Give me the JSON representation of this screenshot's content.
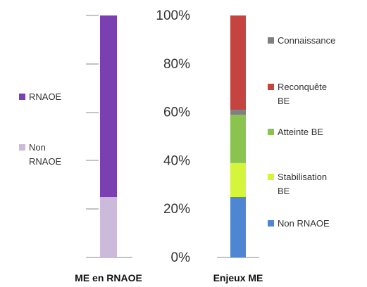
{
  "chart_data": [
    {
      "type": "bar",
      "stacked": true,
      "percent": true,
      "category": "ME en RNAOE",
      "series": [
        {
          "name": "Non RNAOE",
          "value": 25,
          "color": "#cbbad9"
        },
        {
          "name": "RNAOE",
          "value": 75,
          "color": "#7a3fb0"
        }
      ],
      "legend": "left",
      "grid": false
    },
    {
      "type": "bar",
      "stacked": true,
      "percent": true,
      "category": "Enjeux ME",
      "series": [
        {
          "name": "Non RNAOE",
          "value": 25,
          "color": "#4f86d4"
        },
        {
          "name": "Stabilisation BE",
          "value": 14,
          "color": "#d4f53a"
        },
        {
          "name": "Atteinte BE",
          "value": 20,
          "color": "#8bc34f"
        },
        {
          "name": "Connaissance",
          "value": 2,
          "color": "#7f7f7f"
        },
        {
          "name": "Reconquête BE",
          "value": 39,
          "color": "#c64440"
        }
      ],
      "legend": "right",
      "grid": false
    }
  ],
  "axis": {
    "ylim": [
      0,
      100
    ],
    "ticks": [
      {
        "value": 0,
        "label": "0%"
      },
      {
        "value": 20,
        "label": "20%"
      },
      {
        "value": 40,
        "label": "40%"
      },
      {
        "value": 60,
        "label": "60%"
      },
      {
        "value": 80,
        "label": "80%"
      },
      {
        "value": 100,
        "label": "100%"
      }
    ]
  },
  "legends": {
    "left": [
      {
        "lines": [
          "RNAOE"
        ],
        "color": "#7a3fb0"
      },
      {
        "lines": [
          "Non",
          "RNAOE"
        ],
        "color": "#cbbad9"
      }
    ],
    "right": [
      {
        "lines": [
          "Connaissance"
        ],
        "color": "#7f7f7f"
      },
      {
        "lines": [
          "Reconquête",
          "BE"
        ],
        "color": "#c64440"
      },
      {
        "lines": [
          "Atteinte BE"
        ],
        "color": "#8bc34f"
      },
      {
        "lines": [
          "Stabilisation",
          "BE"
        ],
        "color": "#d4f53a"
      },
      {
        "lines": [
          "Non RNAOE"
        ],
        "color": "#4f86d4"
      }
    ]
  }
}
